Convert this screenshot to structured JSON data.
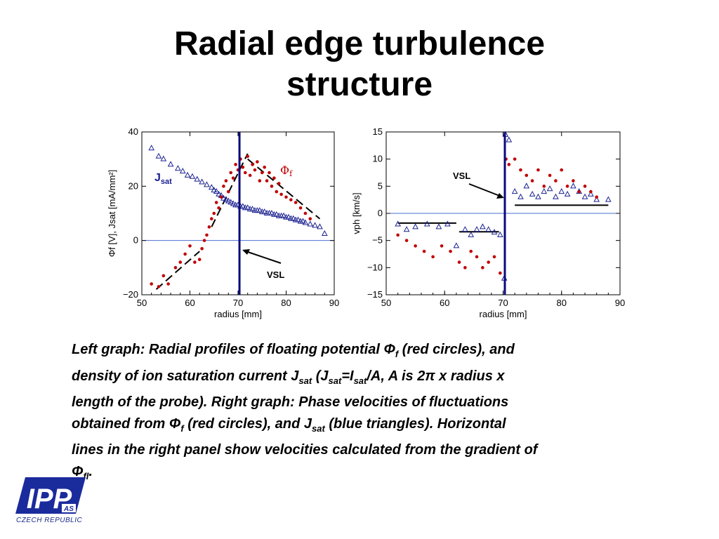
{
  "slide": {
    "title_lines": [
      "Radial edge turbulence",
      "structure"
    ]
  },
  "colors": {
    "red": "#c00000",
    "blue": "#1a2090",
    "vsl": "#0a0a7a",
    "zero": "#4a6fd0"
  },
  "chart_data": [
    {
      "type": "scatter",
      "xlabel": "radius [mm]",
      "ylabel": "Φf [V], Jsat [mA/mm²]",
      "xlim": [
        50,
        90
      ],
      "ylim": [
        -20,
        40
      ],
      "xticks": [
        50,
        60,
        70,
        80,
        90
      ],
      "yticks": [
        -20,
        0,
        20,
        40
      ],
      "grid": false,
      "vsl_x": 70.3,
      "zero_line": 0,
      "labels": {
        "jsat": {
          "main": "J",
          "sub": "sat"
        },
        "phi": {
          "main": "Φ",
          "sub": "f"
        },
        "vsl": "VSL"
      },
      "series": [
        {
          "name": "Jsat",
          "marker": "triangle",
          "x": [
            52,
            53.5,
            54.5,
            56,
            57.5,
            58.5,
            59.5,
            60.5,
            61.5,
            62.5,
            63.5,
            64.5,
            65,
            65.5,
            66,
            66.5,
            67,
            67.5,
            68,
            68.5,
            69,
            69.5,
            70,
            70.5,
            71,
            71.5,
            72,
            72.5,
            73,
            73.5,
            74,
            74.5,
            75,
            75.5,
            76,
            76.5,
            77,
            77.5,
            78,
            78.5,
            79,
            79.5,
            80,
            80.5,
            81,
            81.5,
            82,
            82.5,
            83,
            83.5,
            84,
            85,
            86,
            87,
            88
          ],
          "y": [
            34,
            31,
            30,
            28,
            26.5,
            25.5,
            24,
            23.5,
            22.5,
            21.5,
            20.5,
            19.5,
            18.5,
            18,
            17,
            16.5,
            15.5,
            15,
            14.5,
            14,
            13.5,
            13,
            13,
            12.5,
            12.5,
            12,
            12,
            11.5,
            11.5,
            11,
            11,
            11,
            10.5,
            10.5,
            10,
            10,
            10,
            9.5,
            9.5,
            9,
            9,
            9,
            8.5,
            8.5,
            8,
            8,
            7.5,
            7.5,
            7,
            7,
            6.5,
            6,
            5.5,
            5,
            2.5
          ]
        },
        {
          "name": "Φf",
          "marker": "circle",
          "x": [
            52,
            53.5,
            54.5,
            55.5,
            57,
            58,
            59,
            60,
            61,
            62,
            62.5,
            63,
            63.5,
            64,
            64.5,
            65,
            65.5,
            66,
            66.5,
            67,
            67.5,
            68,
            68.5,
            69,
            69.5,
            70,
            70.5,
            71,
            71.5,
            72,
            72.5,
            73,
            73.5,
            74,
            74.5,
            75,
            75.5,
            76,
            76.5,
            77,
            77.5,
            78,
            78.5,
            79,
            80,
            81,
            82,
            83,
            84,
            85
          ],
          "y": [
            -16,
            -17,
            -13,
            -16,
            -10,
            -8,
            -5,
            -2,
            -8,
            -7,
            -3,
            0,
            2,
            5,
            8,
            10,
            14,
            12,
            16,
            20,
            22,
            18,
            25,
            23,
            28,
            26,
            30,
            27,
            25,
            31,
            24,
            28,
            26,
            29,
            22,
            25,
            27,
            22,
            25,
            20,
            23,
            18,
            21,
            17,
            16,
            15,
            14,
            12,
            10,
            8
          ]
        }
      ],
      "fit_lines": [
        {
          "x": [
            53,
            62
          ],
          "y": [
            -18,
            -4
          ]
        },
        {
          "x": [
            64.5,
            72
          ],
          "y": [
            5,
            32
          ]
        },
        {
          "x": [
            72,
            87
          ],
          "y": [
            30,
            8
          ]
        }
      ]
    },
    {
      "type": "scatter",
      "xlabel": "radius [mm]",
      "ylabel": "vph [km/s]",
      "xlim": [
        50,
        90
      ],
      "ylim": [
        -15,
        15
      ],
      "xticks": [
        50,
        60,
        70,
        80,
        90
      ],
      "yticks": [
        -15,
        -10,
        -5,
        0,
        5,
        10,
        15
      ],
      "grid": false,
      "vsl_x": 70.3,
      "zero_line": 0,
      "labels": {
        "vsl": "VSL"
      },
      "series": [
        {
          "name": "Jsat",
          "marker": "triangle",
          "x": [
            52,
            53.5,
            55,
            57,
            59,
            60.5,
            62,
            63.5,
            64.5,
            65.5,
            66.5,
            67.5,
            68.5,
            69.5,
            70.2,
            70.4,
            71,
            72,
            73,
            74,
            75,
            76,
            77,
            78,
            79,
            80,
            81,
            82,
            83,
            84,
            85,
            86,
            88
          ],
          "y": [
            -2,
            -3,
            -2.5,
            -2,
            -2.5,
            -2,
            -6,
            -3,
            -4,
            -3,
            -2.5,
            -3,
            -3.5,
            -4,
            -12,
            14.5,
            13.5,
            4,
            3,
            5,
            3.5,
            3,
            4,
            4.5,
            3,
            4,
            3.5,
            5,
            4,
            3,
            3.5,
            2.5,
            2.5
          ]
        },
        {
          "name": "Φf",
          "marker": "circle",
          "x": [
            52,
            53.5,
            55,
            56.5,
            58,
            59.5,
            61,
            62.5,
            63.5,
            64.5,
            65.5,
            66.5,
            67.5,
            68.5,
            69.5,
            70.5,
            71,
            72,
            73,
            74,
            75,
            76,
            77,
            78,
            79,
            80,
            81,
            82,
            83,
            84,
            85,
            86
          ],
          "y": [
            -4,
            -5,
            -6,
            -7,
            -8,
            -6,
            -7,
            -9,
            -10,
            -7,
            -8,
            -10,
            -9,
            -8,
            -11,
            10,
            9,
            10,
            8,
            7,
            6,
            8,
            5,
            7,
            6,
            8,
            5,
            6,
            4,
            5,
            4,
            3
          ]
        }
      ],
      "hlines": [
        {
          "x": [
            52,
            62
          ],
          "y": -1.8
        },
        {
          "x": [
            62.5,
            69.3
          ],
          "y": -3.4
        },
        {
          "x": [
            72,
            88
          ],
          "y": 1.5
        }
      ]
    }
  ],
  "caption": {
    "l1": {
      "a": "Left graph: Radial profiles of floating potential Φ",
      "b": "f",
      "c": " (red circles), and"
    },
    "l2": {
      "a": "density of ion saturation current J",
      "b": "sat",
      "c": " (J",
      "d": "sat",
      "e": "=I",
      "f": "sat",
      "g": "/A, A is 2π x radius x"
    },
    "l3": "length of the probe). Right graph: Phase velocities of fluctuations",
    "l4": {
      "a": "obtained from Φ",
      "b": "f",
      "c": " (red circles), and J",
      "d": "sat",
      "e": " (blue triangles).  Horizontal"
    },
    "l5": "lines in the right panel show velocities calculated from the gradient of",
    "l6": {
      "a": "Φ",
      "b": "fl",
      "c": "."
    }
  },
  "logo": {
    "text": "IPP",
    "badge": "AS",
    "subtitle": "CZECH REPUBLIC"
  }
}
